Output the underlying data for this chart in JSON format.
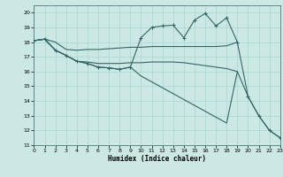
{
  "xlabel": "Humidex (Indice chaleur)",
  "bg_color": "#cce8e5",
  "grid_color": "#aad4d0",
  "line_color": "#336666",
  "xlim": [
    0,
    23
  ],
  "ylim": [
    11,
    20.5
  ],
  "yticks": [
    11,
    12,
    13,
    14,
    15,
    16,
    17,
    18,
    19,
    20
  ],
  "xticks": [
    0,
    1,
    2,
    3,
    4,
    5,
    6,
    7,
    8,
    9,
    10,
    11,
    12,
    13,
    14,
    15,
    16,
    17,
    18,
    19,
    20,
    21,
    22,
    23
  ],
  "series": [
    {
      "x": [
        0,
        1,
        2,
        3,
        4,
        5,
        6,
        7,
        8,
        9,
        10,
        11,
        12,
        13,
        14,
        15,
        16,
        17,
        18,
        19
      ],
      "y": [
        18.1,
        18.2,
        18.0,
        17.5,
        17.45,
        17.5,
        17.5,
        17.55,
        17.6,
        17.65,
        17.65,
        17.7,
        17.7,
        17.7,
        17.7,
        17.7,
        17.7,
        17.7,
        17.75,
        18.0
      ],
      "marker": false
    },
    {
      "x": [
        0,
        1,
        2,
        3,
        4,
        5,
        6,
        7,
        8,
        9,
        10,
        11,
        12,
        13,
        14,
        15,
        16,
        17,
        18,
        19
      ],
      "y": [
        18.1,
        18.2,
        17.45,
        17.1,
        16.7,
        16.65,
        16.55,
        16.55,
        16.55,
        16.6,
        16.6,
        16.65,
        16.65,
        16.65,
        16.6,
        16.5,
        16.4,
        16.3,
        16.2,
        16.0
      ],
      "marker": false
    },
    {
      "x": [
        0,
        1,
        2,
        3,
        4,
        5,
        6,
        7,
        8,
        9,
        10,
        11,
        12,
        13,
        14,
        15,
        16,
        17,
        18,
        19,
        20,
        21,
        22,
        23
      ],
      "y": [
        18.1,
        18.2,
        17.45,
        17.1,
        16.7,
        16.55,
        16.3,
        16.25,
        16.15,
        16.3,
        15.7,
        15.3,
        14.9,
        14.5,
        14.1,
        13.7,
        13.3,
        12.9,
        12.5,
        16.0,
        14.3,
        13.0,
        12.0,
        11.5
      ],
      "marker": false
    },
    {
      "x": [
        0,
        1,
        2,
        3,
        4,
        5,
        6,
        7,
        8,
        9,
        10,
        11,
        12,
        13,
        14,
        15,
        16,
        17,
        18,
        19,
        20,
        21,
        22,
        23
      ],
      "y": [
        18.1,
        18.2,
        17.45,
        17.1,
        16.7,
        16.55,
        16.3,
        16.25,
        16.15,
        16.3,
        18.3,
        19.0,
        19.1,
        19.15,
        18.3,
        19.5,
        19.95,
        19.1,
        19.65,
        18.0,
        14.3,
        13.0,
        12.0,
        11.5
      ],
      "marker": true
    }
  ]
}
